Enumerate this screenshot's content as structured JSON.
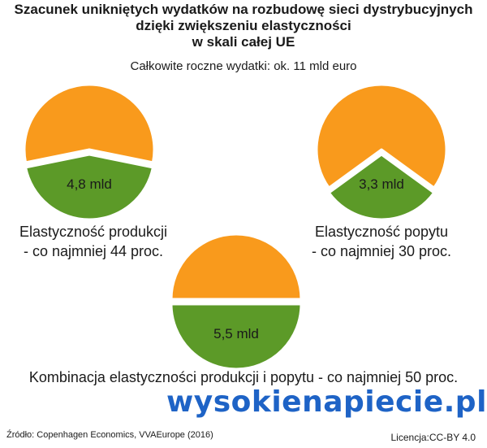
{
  "title_lines": [
    "Szacunek unikniętych wydatków na rozbudowę sieci dystrybucyjnych",
    "dzięki  zwiększeniu elastyczności",
    "w skali całej UE"
  ],
  "subtitle": "Całkowite roczne wydatki: ok. 11 mld euro",
  "colors": {
    "share": "#5c9a28",
    "rest": "#f99a1c"
  },
  "chart_data": [
    {
      "type": "pie",
      "title": "Elastyczność produkcji - co najmniej 44 proc.",
      "label_lines": [
        "Elastyczność produkcji",
        "- co najmniej 44 proc."
      ],
      "slices": [
        {
          "label": "4,8 mld",
          "value": 4.8,
          "color": "#5c9a28",
          "exploded": true
        },
        {
          "label": "",
          "value": 6.2,
          "color": "#f99a1c"
        }
      ]
    },
    {
      "type": "pie",
      "title": "Elastyczność popytu - co najmniej 30 proc.",
      "label_lines": [
        "Elastyczność popytu",
        "- co najmniej 30 proc."
      ],
      "slices": [
        {
          "label": "3,3 mld",
          "value": 3.3,
          "color": "#5c9a28",
          "exploded": true
        },
        {
          "label": "",
          "value": 7.7,
          "color": "#f99a1c"
        }
      ]
    },
    {
      "type": "pie",
      "title": "Kombinacja elastyczności produkcji i popytu - co najmniej 50 proc.",
      "label_lines": [
        "Kombinacja elastyczności produkcji i popytu - co najmniej 50 proc."
      ],
      "slices": [
        {
          "label": "5,5 mld",
          "value": 5.5,
          "color": "#5c9a28",
          "exploded": true
        },
        {
          "label": "",
          "value": 5.5,
          "color": "#f99a1c"
        }
      ]
    }
  ],
  "logo_text": "wysokienapiecie.pl",
  "source": "Źródło: Copenhagen Economics, VVAEurope (2016)",
  "license": "Licencja:CC-BY 4.0"
}
